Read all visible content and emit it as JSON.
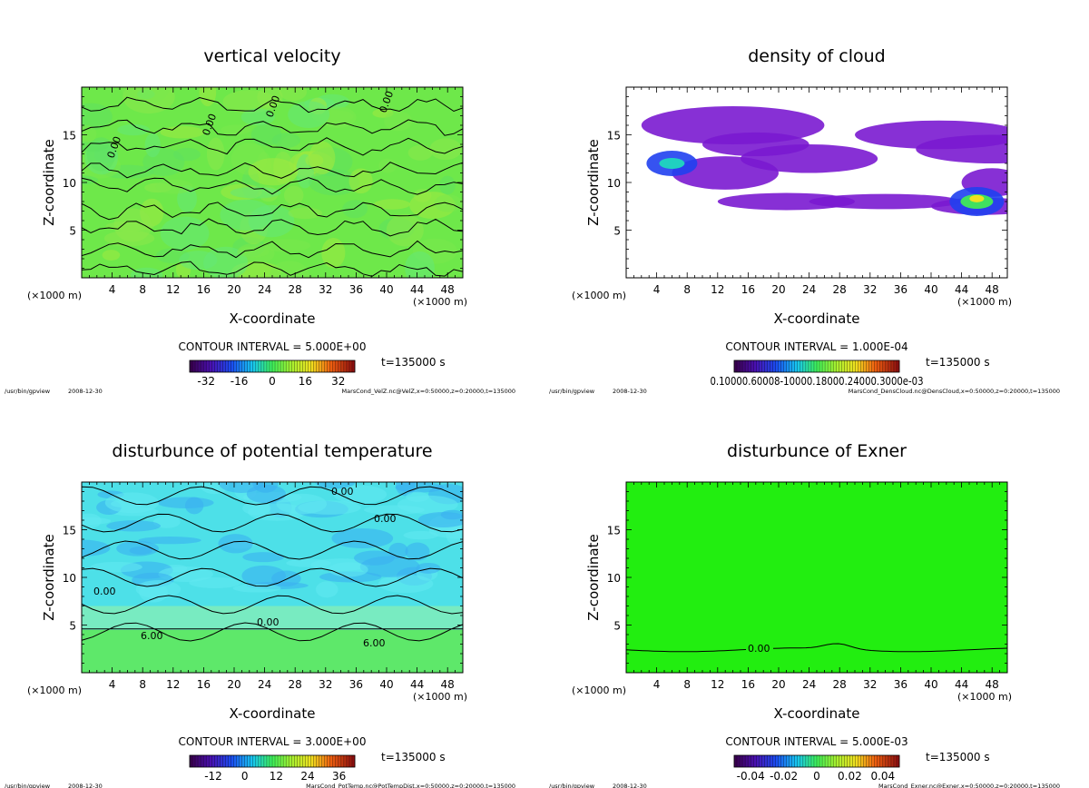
{
  "chart_data": [
    {
      "type": "heatmap",
      "title": "vertical velocity",
      "xlabel": "X-coordinate",
      "ylabel": "Z-coordinate",
      "x_unit": "(×1000 m)",
      "z_unit": "(×1000 m)",
      "xlim": [
        0,
        50
      ],
      "ylim": [
        0,
        20
      ],
      "xticks": [
        4,
        8,
        12,
        16,
        20,
        24,
        28,
        32,
        36,
        40,
        44,
        48
      ],
      "yticks": [
        5,
        10,
        15
      ],
      "contour_interval_text": "CONTOUR INTERVAL = 5.000E+00",
      "time_text": "t=135000 s",
      "colorbar_labels": [
        "-32",
        "-16",
        "0",
        "16",
        "32"
      ],
      "colorbar_range": [
        -40,
        40
      ],
      "contour_labels": [
        "0.00",
        "0.00",
        "0.00",
        "0.00"
      ],
      "program_text": "/usr/bin/gpview",
      "date_text": "2008-12-30",
      "file_text": "MarsCond_VelZ.nc@VelZ,x=0:50000,z=0:20000,t=135000",
      "field_color": "#6ee84a",
      "field": "vertical-velocity"
    },
    {
      "type": "heatmap",
      "title": "density of cloud",
      "xlabel": "X-coordinate",
      "ylabel": "Z-coordinate",
      "x_unit": "(×1000 m)",
      "z_unit": "(×1000 m)",
      "xlim": [
        0,
        50
      ],
      "ylim": [
        0,
        20
      ],
      "xticks": [
        4,
        8,
        12,
        16,
        20,
        24,
        28,
        32,
        36,
        40,
        44,
        48
      ],
      "yticks": [
        5,
        10,
        15
      ],
      "contour_interval_text": "CONTOUR INTERVAL = 1.000E-04",
      "time_text": "t=135000 s",
      "colorbar_labels_text": "0.10000.60008-10000.18000.24000.3000e-03",
      "colorbar_range": [
        0,
        0.0004
      ],
      "contour_labels": [],
      "program_text": "/usr/bin/gpview",
      "date_text": "2008-12-30",
      "file_text": "MarsCond_DensCloud.nc@DensCloud,x=0:50000,z=0:20000,t=135000",
      "field_color": "#ffffff",
      "field": "cloud-density"
    },
    {
      "type": "heatmap",
      "title": "disturbunce of potential temperature",
      "xlabel": "X-coordinate",
      "ylabel": "Z-coordinate",
      "x_unit": "(×1000 m)",
      "z_unit": "(×1000 m)",
      "xlim": [
        0,
        50
      ],
      "ylim": [
        0,
        20
      ],
      "xticks": [
        4,
        8,
        12,
        16,
        20,
        24,
        28,
        32,
        36,
        40,
        44,
        48
      ],
      "yticks": [
        5,
        10,
        15
      ],
      "contour_interval_text": "CONTOUR INTERVAL = 3.000E+00",
      "time_text": "t=135000 s",
      "colorbar_labels": [
        "-12",
        "0",
        "12",
        "24",
        "36"
      ],
      "colorbar_range": [
        -21,
        42
      ],
      "contour_labels": [
        "0.00",
        "0.00",
        "0.00",
        "0.00",
        "6.00",
        "6.00"
      ],
      "program_text": "/usr/bin/gpview",
      "date_text": "2008-12-30",
      "file_text": "MarsCond_PotTemp.nc@PotTempDist,x=0:50000,z=0:20000,t=135000",
      "field_color": "#4de0e8",
      "field": "potential-temperature"
    },
    {
      "type": "heatmap",
      "title": "disturbunce of Exner",
      "xlabel": "X-coordinate",
      "ylabel": "Z-coordinate",
      "x_unit": "(×1000 m)",
      "z_unit": "(×1000 m)",
      "xlim": [
        0,
        50
      ],
      "ylim": [
        0,
        20
      ],
      "xticks": [
        4,
        8,
        12,
        16,
        20,
        24,
        28,
        32,
        36,
        40,
        44,
        48
      ],
      "yticks": [
        5,
        10,
        15
      ],
      "contour_interval_text": "CONTOUR INTERVAL = 5.000E-03",
      "time_text": "t=135000 s",
      "colorbar_labels": [
        "-0.04",
        "-0.02",
        "0",
        "0.02",
        "0.04"
      ],
      "colorbar_range": [
        -0.05,
        0.05
      ],
      "contour_labels": [
        "0.00"
      ],
      "program_text": "/usr/bin/gpview",
      "date_text": "2008-12-30",
      "file_text": "MarsCond_Exner.nc@Exner,x=0:50000,z=0:20000,t=135000",
      "field_color": "#22ee10",
      "field": "exner"
    }
  ]
}
